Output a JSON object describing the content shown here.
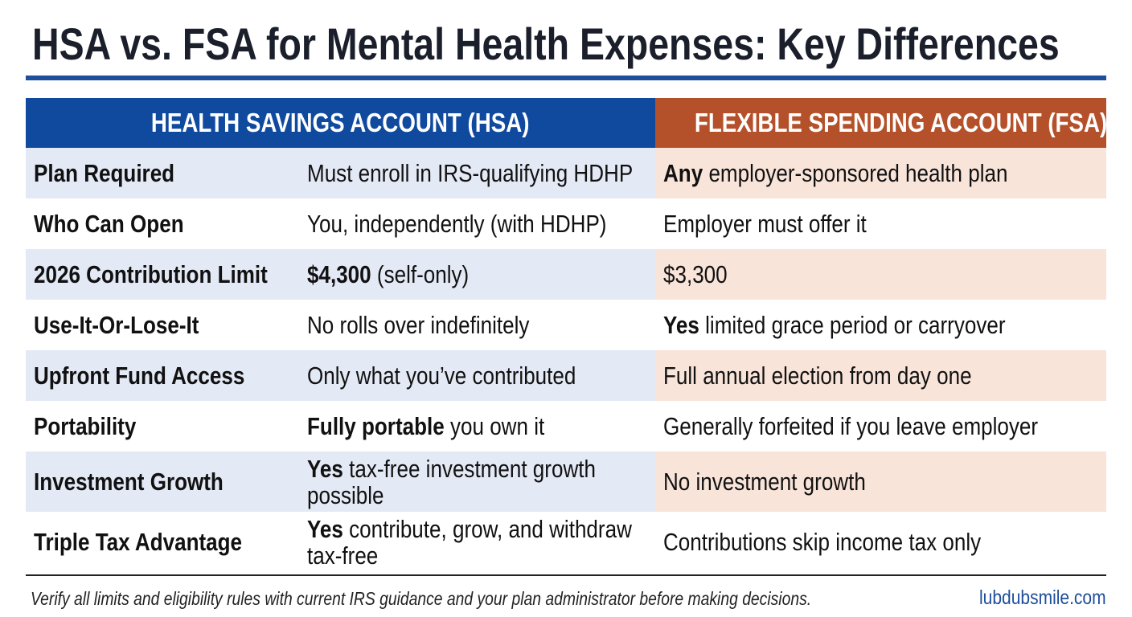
{
  "title": "HSA vs. FSA for Mental Health Expenses: Key Differences",
  "table": {
    "headers": [
      "HEALTH SAVINGS ACCOUNT (HSA)",
      "FLEXIBLE SPENDING ACCOUNT (FSA)"
    ],
    "rows": [
      {
        "label": "Plan Required",
        "hsa": {
          "text": "Must enroll in IRS-qualifying HDHP"
        },
        "fsa": {
          "bold": "Any",
          "text": "employer-sponsored health plan"
        }
      },
      {
        "label": "Who Can Open",
        "hsa": {
          "text": "You, independently (with HDHP)"
        },
        "fsa": {
          "text": "Employer must offer it"
        }
      },
      {
        "label": "2026 Contribution Limit",
        "hsa": {
          "bold": "$4,300",
          "text": "(self-only)"
        },
        "fsa": {
          "text": "$3,300"
        }
      },
      {
        "label": "Use-It-Or-Lose-It",
        "hsa": {
          "text": "No rolls over indefinitely"
        },
        "fsa": {
          "bold": "Yes",
          "text": "limited grace period or carryover"
        }
      },
      {
        "label": "Upfront Fund Access",
        "hsa": {
          "text": "Only what you’ve contributed"
        },
        "fsa": {
          "text": "Full annual election from day one"
        }
      },
      {
        "label": "Portability",
        "hsa": {
          "bold": "Fully portable",
          "text": "you own it"
        },
        "fsa": {
          "text": "Generally forfeited if you leave employer"
        }
      },
      {
        "label": "Investment Growth",
        "hsa": {
          "bold": "Yes",
          "text": "tax-free investment growth possible"
        },
        "fsa": {
          "text": "No investment growth"
        }
      },
      {
        "label": "Triple Tax Advantage",
        "hsa": {
          "bold": "Yes",
          "text": "contribute, grow, and withdraw tax-free"
        },
        "fsa": {
          "text": "Contributions skip income tax only"
        }
      }
    ]
  },
  "footer": {
    "note": "Verify all limits and eligibility rules with current IRS guidance and your plan administrator before making decisions.",
    "site": "lubdubsmile.com"
  }
}
